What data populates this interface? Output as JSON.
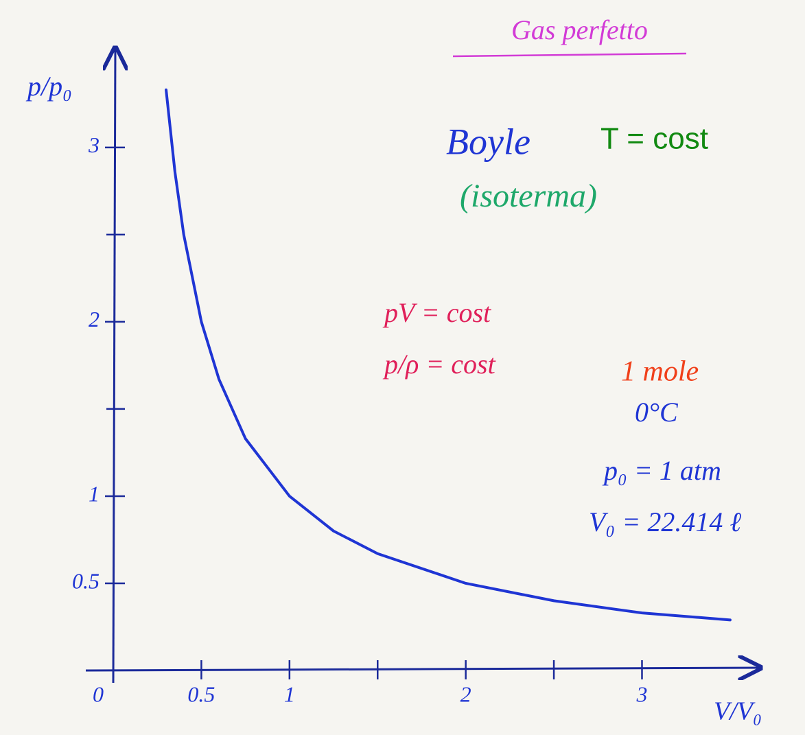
{
  "chart_data": {
    "type": "line",
    "title": "Gas perfetto",
    "title_color": "#d23bd6",
    "subtitle": "Boyle",
    "xlabel": "V/V₀",
    "ylabel": "p/p₀",
    "x": [
      0.3,
      0.35,
      0.4,
      0.5,
      0.6,
      0.75,
      1,
      1.25,
      1.5,
      2,
      2.5,
      3,
      3.5
    ],
    "series": [
      {
        "color": "#1f35d4",
        "values": [
          3.33,
          2.86,
          2.5,
          2,
          1.67,
          1.33,
          1,
          0.8,
          0.67,
          0.5,
          0.4,
          0.33,
          0.29
        ]
      }
    ],
    "xlim": [
      0,
      3.66
    ],
    "ylim": [
      0,
      3.57
    ],
    "xticks": [
      0,
      0.5,
      1,
      2,
      3
    ],
    "xminor_ticks": [
      1.5,
      2.5
    ],
    "yticks": [
      0.5,
      1,
      2,
      3
    ],
    "yminor_ticks": [
      1.5,
      2.5
    ],
    "annotations": [
      {
        "text": "T = cost",
        "color": "#128a12"
      },
      {
        "text": "(isoterma)",
        "color": "#1ea86a"
      },
      {
        "text": "pV = cost",
        "color": "#e0205a"
      },
      {
        "text": "p/ρ = cost",
        "color": "#e0205a"
      },
      {
        "text": "1 mole",
        "color": "#f0401a"
      },
      {
        "text": "0°C",
        "color": "#1f35d4"
      },
      {
        "text": "p₀ = 1 atm",
        "color": "#1f35d4"
      },
      {
        "text": "V₀ = 22.414 ℓ",
        "color": "#1f35d4"
      }
    ]
  }
}
